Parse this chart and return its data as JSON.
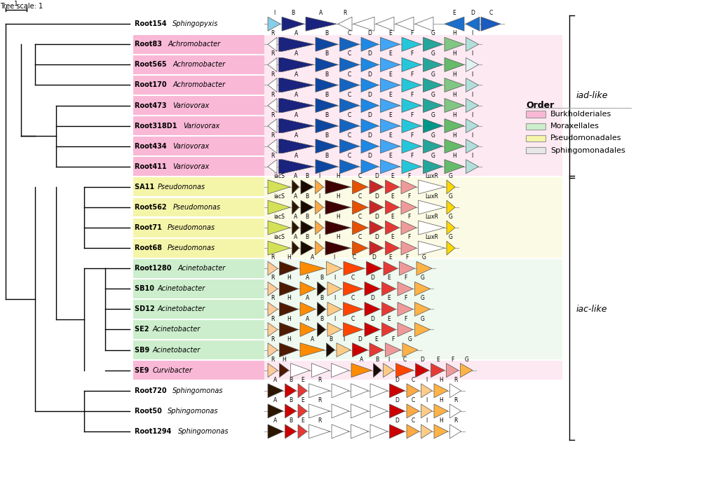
{
  "title": "",
  "fig_width": 10.24,
  "fig_height": 6.91,
  "tree_scale_label": "Tree scale: 1",
  "organisms": [
    {
      "name": "Root154 Sphingopyxis",
      "bold": "Root154",
      "italic": "Sphingopyxis",
      "bg": null,
      "row": 0
    },
    {
      "name": "Root83 Achromobacter",
      "bold": "Root83",
      "italic": "Achromobacter",
      "bg": "#f9b8d6",
      "row": 1
    },
    {
      "name": "Root565 Achromobacter",
      "bold": "Root565",
      "italic": "Achromobacter",
      "bg": "#f9b8d6",
      "row": 2
    },
    {
      "name": "Root170 Achromobacter",
      "bold": "Root170",
      "italic": "Achromobacter",
      "bg": "#f9b8d6",
      "row": 3
    },
    {
      "name": "Root473 Variovorax",
      "bold": "Root473",
      "italic": "Variovorax",
      "bg": "#f9b8d6",
      "row": 4
    },
    {
      "name": "Root318D1 Variovorax",
      "bold": "Root318D1",
      "italic": "Variovorax",
      "bg": "#f9b8d6",
      "row": 5
    },
    {
      "name": "Root434 Variovorax",
      "bold": "Root434",
      "italic": "Variovorax",
      "bg": "#f9b8d6",
      "row": 6
    },
    {
      "name": "Root411 Variovorax",
      "bold": "Root411",
      "italic": "Variovorax",
      "bg": "#f9b8d6",
      "row": 7
    },
    {
      "name": "SA11 Pseudomonas",
      "bold": "SA11",
      "italic": "Pseudomonas",
      "bg": "#f5f5aa",
      "row": 8
    },
    {
      "name": "Root562 Pseudomonas",
      "bold": "Root562",
      "italic": "Pseudomonas",
      "bg": "#f5f5aa",
      "row": 9
    },
    {
      "name": "Root71 Pseudomonas",
      "bold": "Root71",
      "italic": "Pseudomonas",
      "bg": "#f5f5aa",
      "row": 10
    },
    {
      "name": "Root68 Pseudomonas",
      "bold": "Root68",
      "italic": "Pseudomonas",
      "bg": "#f5f5aa",
      "row": 11
    },
    {
      "name": "Root1280 Acinetobacter",
      "bold": "Root1280",
      "italic": "Acinetobacter",
      "bg": "#cceecc",
      "row": 12
    },
    {
      "name": "SB10 Acinetobacter",
      "bold": "SB10",
      "italic": "Acinetobacter",
      "bg": "#cceecc",
      "row": 13
    },
    {
      "name": "SD12 Acinetobacter",
      "bold": "SD12",
      "italic": "Acinetobacter",
      "bg": "#cceecc",
      "row": 14
    },
    {
      "name": "SE2 Acinetobacter",
      "bold": "SE2",
      "italic": "Acinetobacter",
      "bg": "#cceecc",
      "row": 15
    },
    {
      "name": "SB9 Acinetobacter",
      "bold": "SB9",
      "italic": "Acinetobacter",
      "bg": "#cceecc",
      "row": 16
    },
    {
      "name": "SE9 Curvibacter",
      "bold": "SE9",
      "italic": "Curvibacter",
      "bg": "#f9b8d6",
      "row": 17
    },
    {
      "name": "Root720 Sphingomonas",
      "bold": "Root720",
      "italic": "Sphingomonas",
      "bg": null,
      "row": 18
    },
    {
      "name": "Root50 Sphingomonas",
      "bold": "Root50",
      "italic": "Sphingomonas",
      "bg": null,
      "row": 19
    },
    {
      "name": "Root1294 Sphingomonas",
      "bold": "Root1294",
      "italic": "Sphingomonas",
      "bg": null,
      "row": 20
    }
  ],
  "legend_order": {
    "Burkholderiales": "#f9b8d6",
    "Moraxellales": "#cceecc",
    "Pseudomonadales": "#f5f5aa",
    "Sphingomonadales": "#e8e8e8"
  },
  "iad_like_rows": [
    0,
    8
  ],
  "iac_like_rows": [
    8,
    21
  ],
  "colors": {
    "dark_blue": "#1a237e",
    "blue": "#1565c0",
    "light_blue": "#42a5f5",
    "cyan": "#26c6da",
    "teal": "#00897b",
    "light_green": "#66bb6a",
    "dark_maroon": "#3e0000",
    "dark_brown": "#4e1a00",
    "orange": "#ff8c00",
    "light_orange": "#ffb347",
    "red": "#cc0000",
    "dark_red": "#8b0000",
    "salmon": "#fa8072",
    "light_salmon": "#ffb6a3",
    "yellow_green": "#d4e157",
    "yellow": "#ffe066",
    "gold": "#ffd700",
    "white": "#ffffff",
    "light_gray": "#e0e0e0",
    "very_light_blue": "#b3d9ff",
    "very_light_cyan": "#b2ebf2",
    "mint": "#a5d6a7"
  }
}
